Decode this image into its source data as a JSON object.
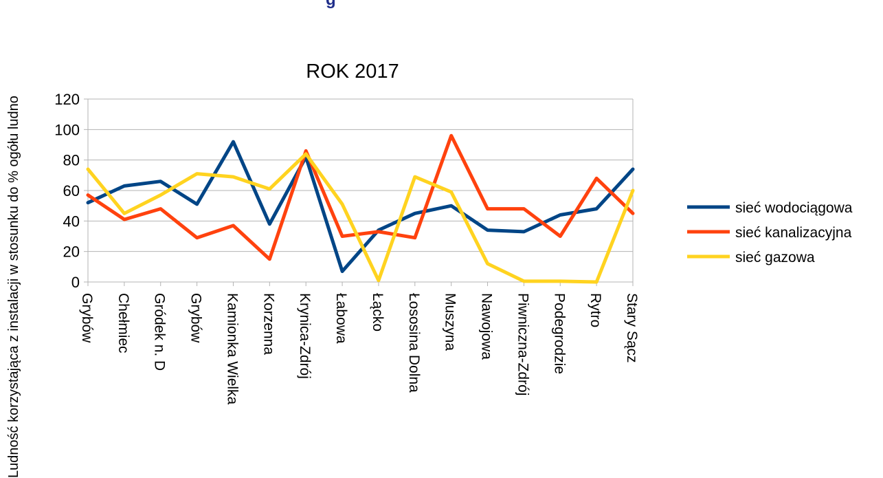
{
  "y_axis_label": "Ludność korzystająca z instalacji w stosunku do % ogółu ludno",
  "top_title_fragment": "g",
  "chart_data": {
    "type": "line",
    "title": "ROK 2017",
    "ylim": [
      0,
      120
    ],
    "yticks": [
      0,
      20,
      40,
      60,
      80,
      100,
      120
    ],
    "grid": true,
    "legend_position": "right",
    "categories": [
      "Grybów",
      "Chełmiec",
      "Gródek n. D",
      "Grybów",
      "Kamionka Wielka",
      "Korzenna",
      "Krynica-Zdrój",
      "Łabowa",
      "Łącko",
      "Łososina Dolna",
      "Muszyna",
      "Nawojowa",
      "Piwniczna-Zdrój",
      "Podegrodzie",
      "Rytro",
      "Stary Sącz"
    ],
    "series": [
      {
        "name": "sieć wodociągowa",
        "color": "#004586",
        "values": [
          52,
          63,
          66,
          51,
          92,
          38,
          82,
          7,
          34,
          45,
          50,
          34,
          33,
          44,
          48,
          74
        ]
      },
      {
        "name": "sieć kanalizacyjna",
        "color": "#ff420e",
        "values": [
          57,
          41,
          48,
          29,
          37,
          15,
          86,
          30,
          33,
          29,
          96,
          48,
          48,
          30,
          68,
          45
        ]
      },
      {
        "name": "sieć gazowa",
        "color": "#ffd320",
        "values": [
          74,
          45,
          57,
          71,
          69,
          61,
          84,
          51,
          1,
          69,
          59,
          12,
          0.5,
          0.5,
          0,
          60
        ]
      }
    ]
  }
}
